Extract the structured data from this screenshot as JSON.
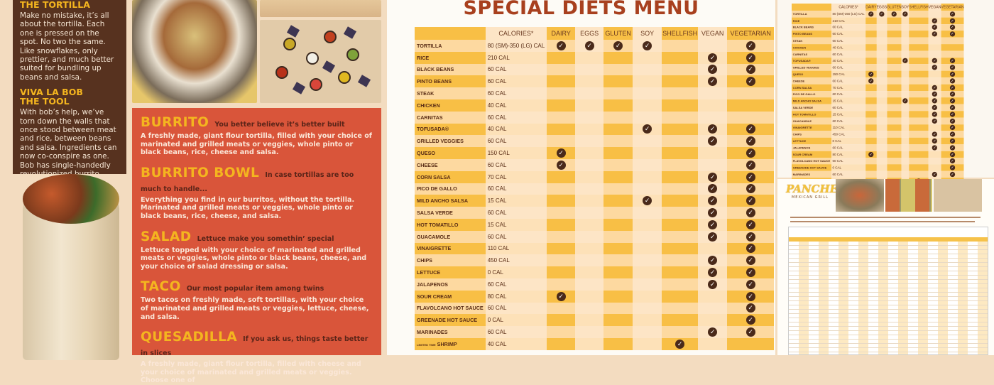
{
  "left_panel": {
    "sections": [
      {
        "heading": "THE TORTILLA",
        "body": "Make no mistake, it’s all about the tortilla. Each one is pressed on the spot. No two the same. Like snowflakes, only prettier, and much better suited for bundling up beans and salsa."
      },
      {
        "heading": "VIVA LA BOB THE TOOL",
        "body": "With bob’s help, we’ve torn down the walls that once stood between meat and rice, between beans and salsa. Ingredients can now co-conspire as one. Bob has single-handedly revolutionized burrito building forever."
      }
    ]
  },
  "menu_items": [
    {
      "name": "BURRITO",
      "tagline": "You better believe it’s better built",
      "desc": "A freshly made, giant flour tortilla, filled with your choice of marinated and grilled meats or veggies, whole pinto or black beans, rice, cheese and salsa."
    },
    {
      "name": "BURRITO BOWL",
      "tagline": "In case tortillas are too much to handle...",
      "desc": "Everything you find in our burritos, without the tortilla. Marinated and grilled meats or veggies, whole pinto or black beans, rice, cheese, and salsa."
    },
    {
      "name": "SALAD",
      "tagline": "Lettuce make you somethin’ special",
      "desc": "Lettuce topped with your choice of marinated and grilled meats or veggies, whole pinto or black beans, cheese, and your choice of salad dressing or salsa."
    },
    {
      "name": "TACO",
      "tagline": "Our most popular item among twins",
      "desc": "Two tacos on freshly made, soft tortillas, with your choice of marinated and grilled meats or veggies, lettuce, cheese, and salsa."
    },
    {
      "name": "QUESADILLA",
      "tagline": "If you ask us, things taste better in slices",
      "desc": "A freshly made, giant flour tortilla, filled with cheese and your choice of marinated and grilled meats or veggies. Choose one of"
    }
  ],
  "diet_menu": {
    "title": "SPECIAL DIETS MENU",
    "columns": [
      "",
      "CALORIES*",
      "DAIRY",
      "EGGS",
      "GLUTEN",
      "SOY",
      "SHELLFISH",
      "VEGAN",
      "VEGETARIAN"
    ],
    "check_icon": "check-circle-icon",
    "colors": {
      "title": "#a8401e",
      "dark_cell": "#f8bf45",
      "light_cell": "#fde5c6",
      "check": "#4a2a1a"
    },
    "rows": [
      {
        "name": "TORTILLA",
        "cal": "80 (SM)-350 (LG) CAL",
        "flags": [
          1,
          1,
          1,
          1,
          0,
          0,
          1
        ]
      },
      {
        "name": "RICE",
        "cal": "210 CAL",
        "flags": [
          0,
          0,
          0,
          0,
          0,
          1,
          1
        ]
      },
      {
        "name": "BLACK BEANS",
        "cal": "60 CAL",
        "flags": [
          0,
          0,
          0,
          0,
          0,
          1,
          1
        ]
      },
      {
        "name": "PINTO BEANS",
        "cal": "60 CAL",
        "flags": [
          0,
          0,
          0,
          0,
          0,
          1,
          1
        ]
      },
      {
        "name": "STEAK",
        "cal": "60 CAL",
        "flags": [
          0,
          0,
          0,
          0,
          0,
          0,
          0
        ]
      },
      {
        "name": "CHICKEN",
        "cal": "40 CAL",
        "flags": [
          0,
          0,
          0,
          0,
          0,
          0,
          0
        ]
      },
      {
        "name": "CARNITAS",
        "cal": "60 CAL",
        "flags": [
          0,
          0,
          0,
          0,
          0,
          0,
          0
        ]
      },
      {
        "name": "TOFUSADA®",
        "cal": "40 CAL",
        "flags": [
          0,
          0,
          0,
          1,
          0,
          1,
          1
        ]
      },
      {
        "name": "GRILLED VEGGIES",
        "cal": "60 CAL",
        "flags": [
          0,
          0,
          0,
          0,
          0,
          1,
          1
        ]
      },
      {
        "name": "QUESO",
        "cal": "150 CAL",
        "flags": [
          1,
          0,
          0,
          0,
          0,
          0,
          1
        ]
      },
      {
        "name": "CHEESE",
        "cal": "60 CAL",
        "flags": [
          1,
          0,
          0,
          0,
          0,
          0,
          1
        ]
      },
      {
        "name": "CORN SALSA",
        "cal": "70 CAL",
        "flags": [
          0,
          0,
          0,
          0,
          0,
          1,
          1
        ]
      },
      {
        "name": "PICO DE GALLO",
        "cal": "60 CAL",
        "flags": [
          0,
          0,
          0,
          0,
          0,
          1,
          1
        ]
      },
      {
        "name": "MILD ANCHO SALSA",
        "cal": "15 CAL",
        "flags": [
          0,
          0,
          0,
          1,
          0,
          1,
          1
        ]
      },
      {
        "name": "SALSA VERDE",
        "cal": "60 CAL",
        "flags": [
          0,
          0,
          0,
          0,
          0,
          1,
          1
        ]
      },
      {
        "name": "HOT TOMATILLO",
        "cal": "15 CAL",
        "flags": [
          0,
          0,
          0,
          0,
          0,
          1,
          1
        ]
      },
      {
        "name": "GUACAMOLE",
        "cal": "60 CAL",
        "flags": [
          0,
          0,
          0,
          0,
          0,
          1,
          1
        ]
      },
      {
        "name": "VINAIGRETTE",
        "cal": "110 CAL",
        "flags": [
          0,
          0,
          0,
          0,
          0,
          0,
          1
        ]
      },
      {
        "name": "CHIPS",
        "cal": "450 CAL",
        "flags": [
          0,
          0,
          0,
          0,
          0,
          1,
          1
        ]
      },
      {
        "name": "LETTUCE",
        "cal": "0 CAL",
        "flags": [
          0,
          0,
          0,
          0,
          0,
          1,
          1
        ]
      },
      {
        "name": "JALAPENOS",
        "cal": "60 CAL",
        "flags": [
          0,
          0,
          0,
          0,
          0,
          1,
          1
        ]
      },
      {
        "name": "SOUR CREAM",
        "cal": "80 CAL",
        "flags": [
          1,
          0,
          0,
          0,
          0,
          0,
          1
        ]
      },
      {
        "name": "FLAVOLCANO HOT SAUCE",
        "cal": "60 CAL",
        "flags": [
          0,
          0,
          0,
          0,
          0,
          0,
          1
        ]
      },
      {
        "name": "GREENADE HOT SAUCE",
        "cal": "0 CAL",
        "flags": [
          0,
          0,
          0,
          0,
          0,
          0,
          1
        ]
      },
      {
        "name": "MARINADES",
        "cal": "60 CAL",
        "flags": [
          0,
          0,
          0,
          0,
          0,
          1,
          1
        ]
      },
      {
        "name": "SHRIMP",
        "prefix": "LIMITED TIME",
        "cal": "40 CAL",
        "flags": [
          0,
          0,
          0,
          0,
          1,
          0,
          0
        ]
      }
    ]
  },
  "nutrition_panel": {
    "logo": "PANCHEROS",
    "logo_sub": "MEXICAN GRILL"
  }
}
